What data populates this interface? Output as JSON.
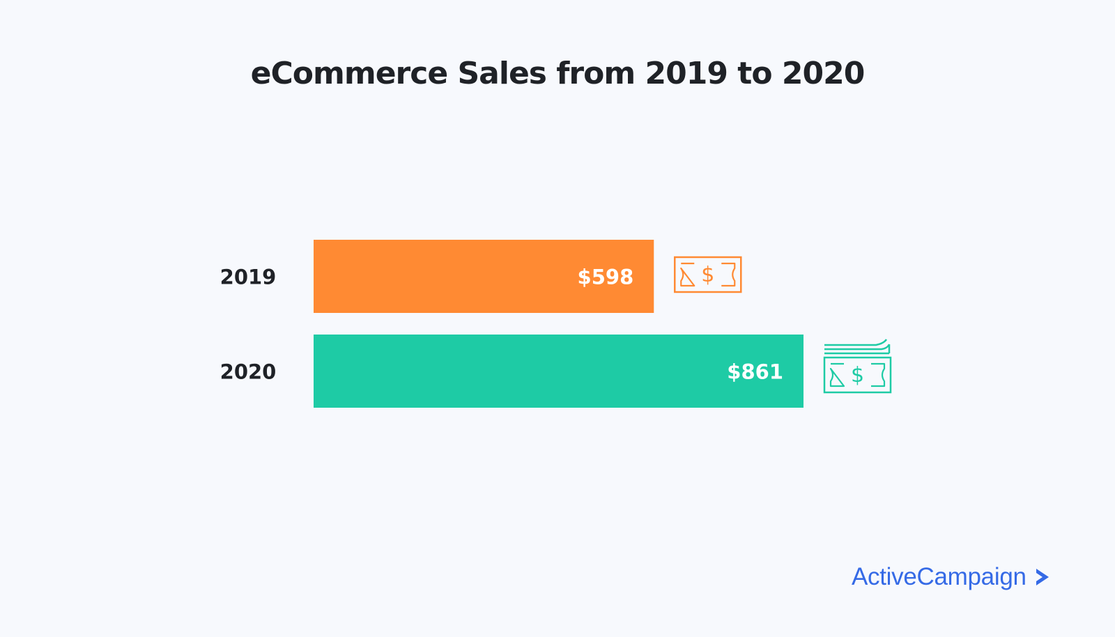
{
  "chart_data": {
    "type": "bar",
    "orientation": "horizontal",
    "title": "eCommerce Sales from 2019 to 2020",
    "categories": [
      "2019",
      "2020"
    ],
    "values": [
      598,
      861
    ],
    "value_labels": [
      "$598",
      "$861"
    ],
    "colors": [
      "#ff8a33",
      "#1ecba5"
    ],
    "xlabel": "",
    "ylabel": "",
    "xlim": [
      0,
      861
    ],
    "grid": false,
    "legend": "none",
    "icons": [
      "dollar-bill-icon",
      "dollar-stack-icon"
    ]
  },
  "brand": {
    "name": "ActiveCampaign",
    "color": "#356ae6"
  }
}
